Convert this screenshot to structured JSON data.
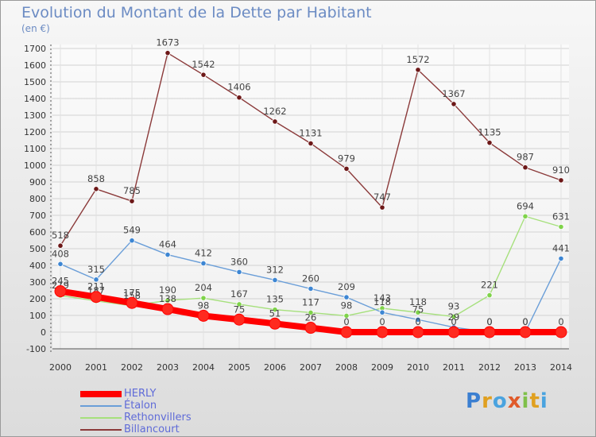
{
  "header": {
    "title": "Evolution du Montant de la Dette par Habitant",
    "subtitle": "(en €)"
  },
  "logo": {
    "text": "Proxiti"
  },
  "chart_data": {
    "type": "line",
    "x": [
      "2000",
      "2001",
      "2002",
      "2003",
      "2004",
      "2005",
      "2006",
      "2007",
      "2008",
      "2009",
      "2010",
      "2011",
      "2012",
      "2013",
      "2014"
    ],
    "ylim": [
      -100,
      1700
    ],
    "yticks": [
      -100,
      0,
      100,
      200,
      300,
      400,
      500,
      600,
      700,
      800,
      900,
      1000,
      1100,
      1200,
      1300,
      1400,
      1500,
      1600,
      1700
    ],
    "grid": true,
    "legend_position": "bottom-left",
    "series": [
      {
        "name": "HERLY",
        "color": "#ff0000",
        "values": [
          245,
          211,
          175,
          138,
          98,
          75,
          51,
          26,
          0,
          0,
          0,
          0,
          0,
          0,
          0
        ],
        "data_labels": true
      },
      {
        "name": "Étalon",
        "color": "#4a8ed0",
        "values": [
          408,
          315,
          549,
          464,
          412,
          360,
          312,
          260,
          209,
          118,
          75,
          29,
          0,
          0,
          441
        ],
        "data_labels": true
      },
      {
        "name": "Rethonvillers",
        "color": "#88dd55",
        "values": [
          219,
          187,
          158,
          190,
          204,
          167,
          135,
          117,
          98,
          143,
          118,
          93,
          221,
          694,
          631
        ],
        "data_labels": true
      },
      {
        "name": "Billancourt",
        "color": "#7a1f1f",
        "values": [
          518,
          858,
          785,
          1673,
          1542,
          1406,
          1262,
          1131,
          979,
          747,
          1572,
          1367,
          1135,
          987,
          910
        ],
        "data_labels": true
      }
    ]
  }
}
